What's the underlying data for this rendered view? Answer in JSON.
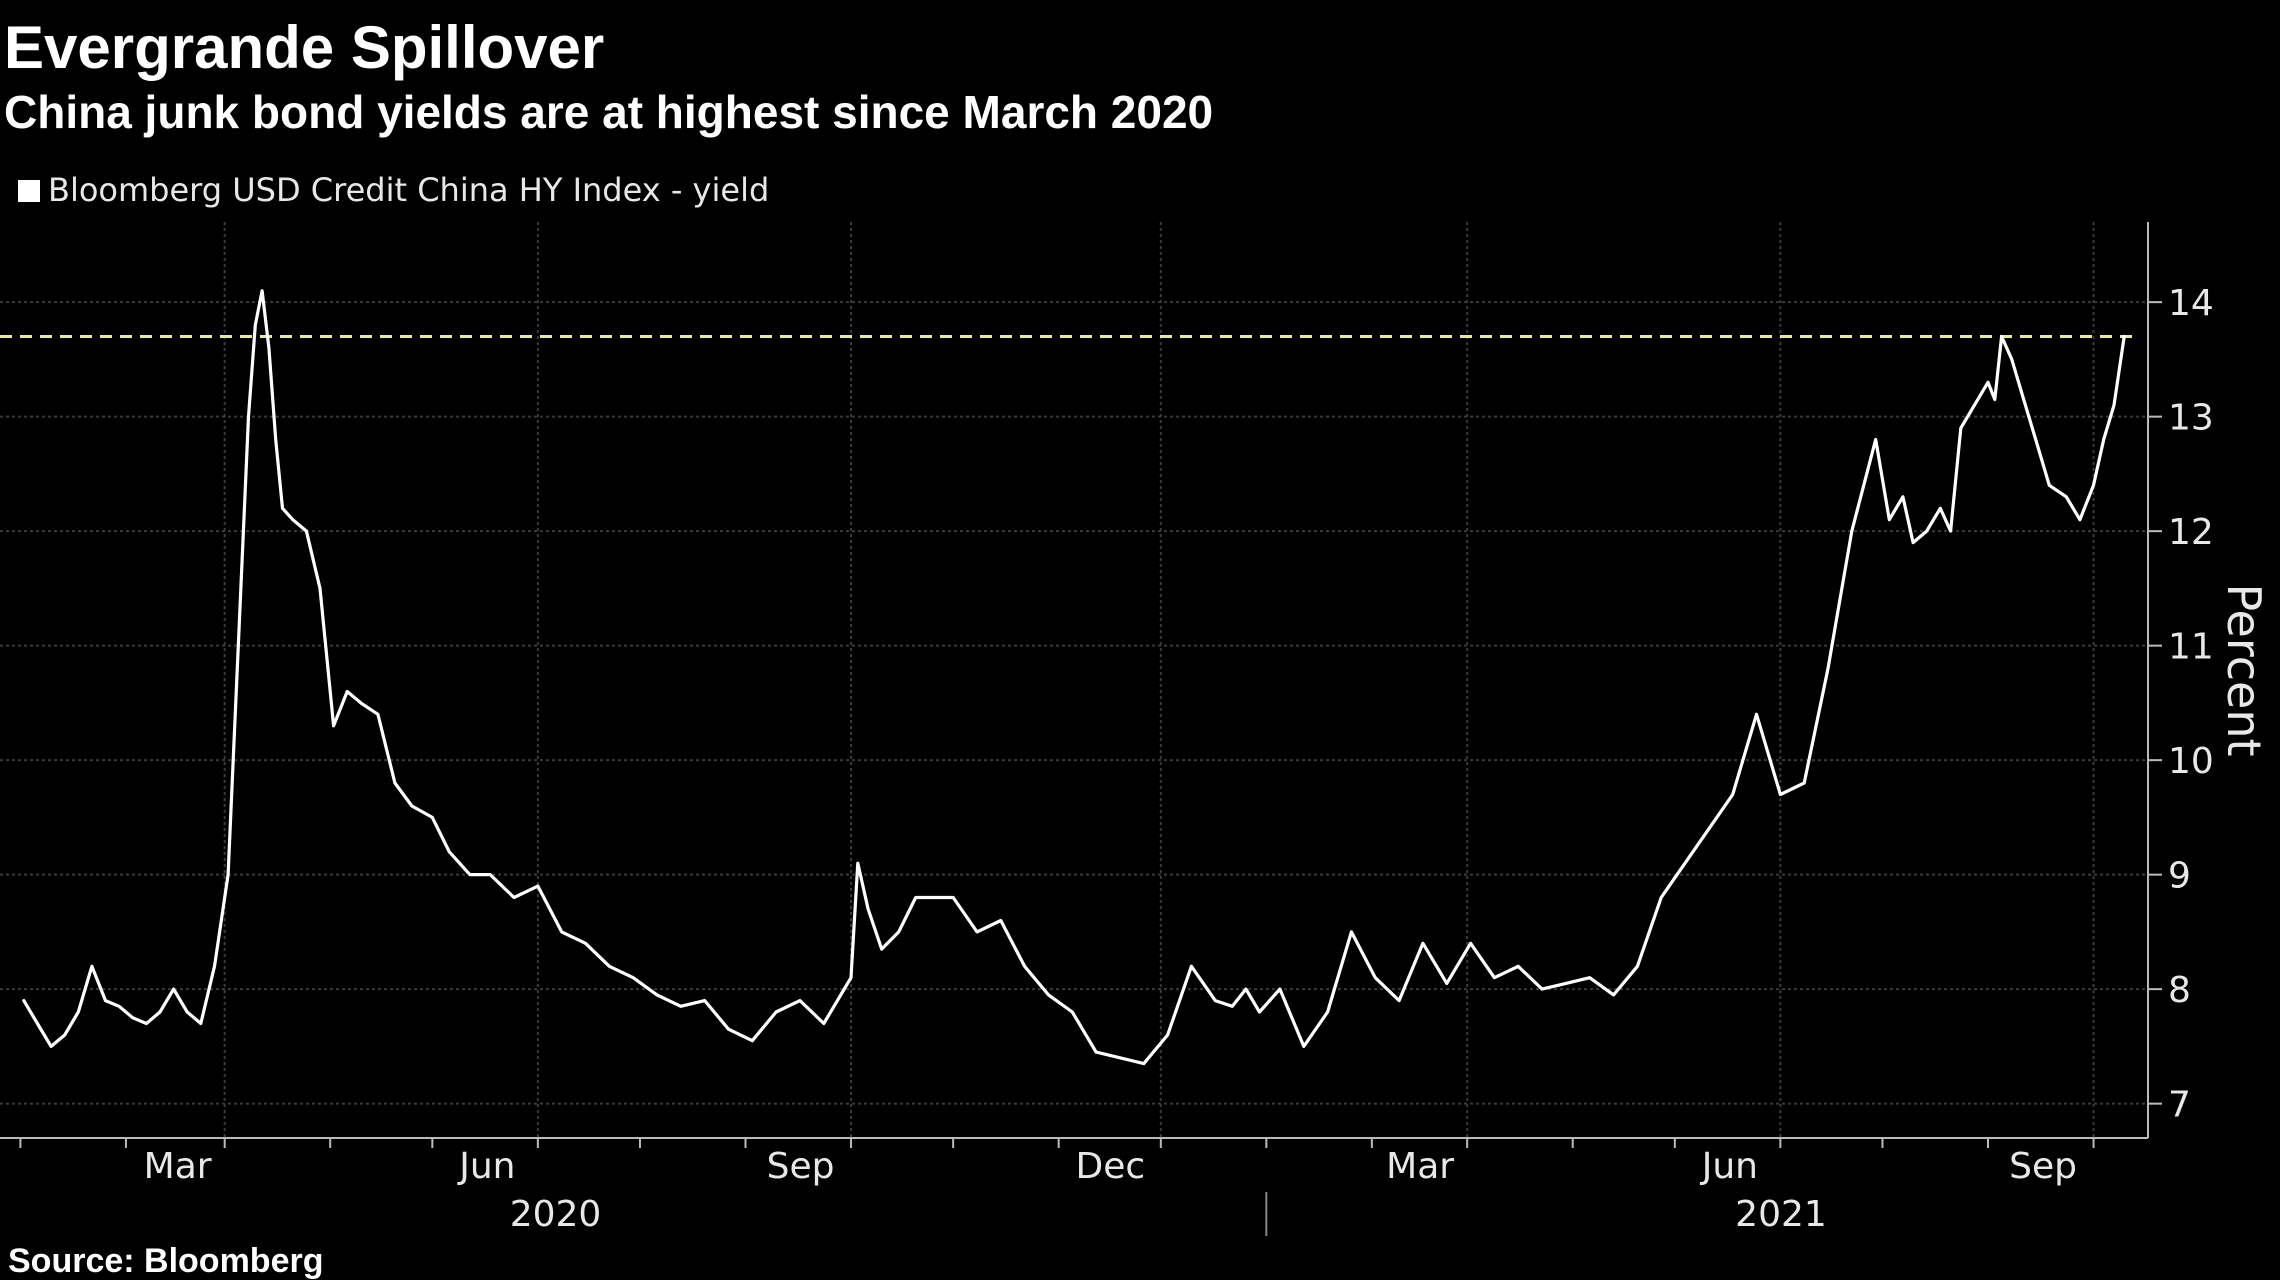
{
  "title": "Evergrande Spillover",
  "subtitle": "China junk bond yields are at highest since March 2020",
  "source": "Source: Bloomberg",
  "colors": {
    "background": "#000000",
    "line": "#ffffff",
    "reference": "#e8e8a0",
    "grid": "#3a3a3a"
  },
  "chart_data": {
    "type": "line",
    "ylabel": "Percent",
    "ylim": [
      6.7,
      14.7
    ],
    "grid": true,
    "legend": "top-left",
    "x_month_labels": [
      "Mar",
      "Jun",
      "Sep",
      "Dec",
      "Mar",
      "Jun",
      "Sep"
    ],
    "x_year_labels": [
      "2020",
      "2021"
    ],
    "y_ticks": [
      7,
      8,
      9,
      10,
      11,
      12,
      13,
      14
    ],
    "reference_line": {
      "value": 13.7,
      "style": "dashed"
    },
    "series": [
      {
        "name": "Bloomberg USD Credit China HY Index - yield",
        "x": [
          "2020-01-02",
          "2020-01-06",
          "2020-01-10",
          "2020-01-14",
          "2020-01-18",
          "2020-01-22",
          "2020-01-26",
          "2020-01-30",
          "2020-02-03",
          "2020-02-07",
          "2020-02-11",
          "2020-02-15",
          "2020-02-19",
          "2020-02-23",
          "2020-02-27",
          "2020-03-02",
          "2020-03-05",
          "2020-03-08",
          "2020-03-10",
          "2020-03-12",
          "2020-03-14",
          "2020-03-16",
          "2020-03-18",
          "2020-03-21",
          "2020-03-25",
          "2020-03-29",
          "2020-04-02",
          "2020-04-06",
          "2020-04-10",
          "2020-04-15",
          "2020-04-20",
          "2020-04-25",
          "2020-05-01",
          "2020-05-06",
          "2020-05-12",
          "2020-05-18",
          "2020-05-25",
          "2020-06-01",
          "2020-06-08",
          "2020-06-15",
          "2020-06-22",
          "2020-06-29",
          "2020-07-06",
          "2020-07-13",
          "2020-07-20",
          "2020-07-27",
          "2020-08-03",
          "2020-08-10",
          "2020-08-17",
          "2020-08-24",
          "2020-08-28",
          "2020-09-01",
          "2020-09-03",
          "2020-09-06",
          "2020-09-10",
          "2020-09-15",
          "2020-09-20",
          "2020-09-25",
          "2020-10-01",
          "2020-10-08",
          "2020-10-15",
          "2020-10-22",
          "2020-10-29",
          "2020-11-05",
          "2020-11-12",
          "2020-11-19",
          "2020-11-26",
          "2020-12-03",
          "2020-12-10",
          "2020-12-17",
          "2020-12-22",
          "2020-12-26",
          "2020-12-30",
          "2021-01-05",
          "2021-01-12",
          "2021-01-19",
          "2021-01-26",
          "2021-02-02",
          "2021-02-09",
          "2021-02-16",
          "2021-02-23",
          "2021-03-02",
          "2021-03-09",
          "2021-03-16",
          "2021-03-23",
          "2021-03-30",
          "2021-04-06",
          "2021-04-13",
          "2021-04-20",
          "2021-04-27",
          "2021-05-04",
          "2021-05-11",
          "2021-05-18",
          "2021-05-25",
          "2021-06-01",
          "2021-06-08",
          "2021-06-15",
          "2021-06-22",
          "2021-06-29",
          "2021-07-03",
          "2021-07-07",
          "2021-07-10",
          "2021-07-14",
          "2021-07-18",
          "2021-07-21",
          "2021-07-24",
          "2021-07-28",
          "2021-08-01",
          "2021-08-03",
          "2021-08-05",
          "2021-08-08",
          "2021-08-11",
          "2021-08-15",
          "2021-08-19",
          "2021-08-24",
          "2021-08-28",
          "2021-09-01",
          "2021-09-04",
          "2021-09-07",
          "2021-09-10"
        ],
        "values": [
          7.9,
          7.7,
          7.5,
          7.6,
          7.8,
          8.2,
          7.9,
          7.85,
          7.75,
          7.7,
          7.8,
          8.0,
          7.8,
          7.7,
          8.2,
          9.0,
          11.0,
          13.0,
          13.8,
          14.1,
          13.6,
          12.8,
          12.2,
          12.1,
          12.0,
          11.5,
          10.3,
          10.6,
          10.5,
          10.4,
          9.8,
          9.6,
          9.5,
          9.2,
          9.0,
          9.0,
          8.8,
          8.9,
          8.5,
          8.4,
          8.2,
          8.1,
          7.95,
          7.85,
          7.9,
          7.65,
          7.55,
          7.8,
          7.9,
          7.7,
          7.9,
          8.1,
          9.1,
          8.7,
          8.35,
          8.5,
          8.8,
          8.8,
          8.8,
          8.5,
          8.6,
          8.2,
          7.95,
          7.8,
          7.45,
          7.4,
          7.35,
          7.6,
          8.2,
          7.9,
          7.85,
          8.0,
          7.8,
          8.0,
          7.5,
          7.8,
          8.5,
          8.1,
          7.9,
          8.4,
          8.05,
          8.4,
          8.1,
          8.2,
          8.0,
          8.05,
          8.1,
          7.95,
          8.2,
          8.8,
          9.1,
          9.4,
          9.7,
          10.4,
          9.7,
          9.8,
          10.8,
          12.0,
          12.8,
          12.1,
          12.3,
          11.9,
          12.0,
          12.2,
          12.0,
          12.9,
          13.1,
          13.3,
          13.15,
          13.7,
          13.5,
          13.2,
          12.8,
          12.4,
          12.3,
          12.1,
          12.4,
          12.8,
          13.1,
          13.7
        ]
      }
    ]
  }
}
